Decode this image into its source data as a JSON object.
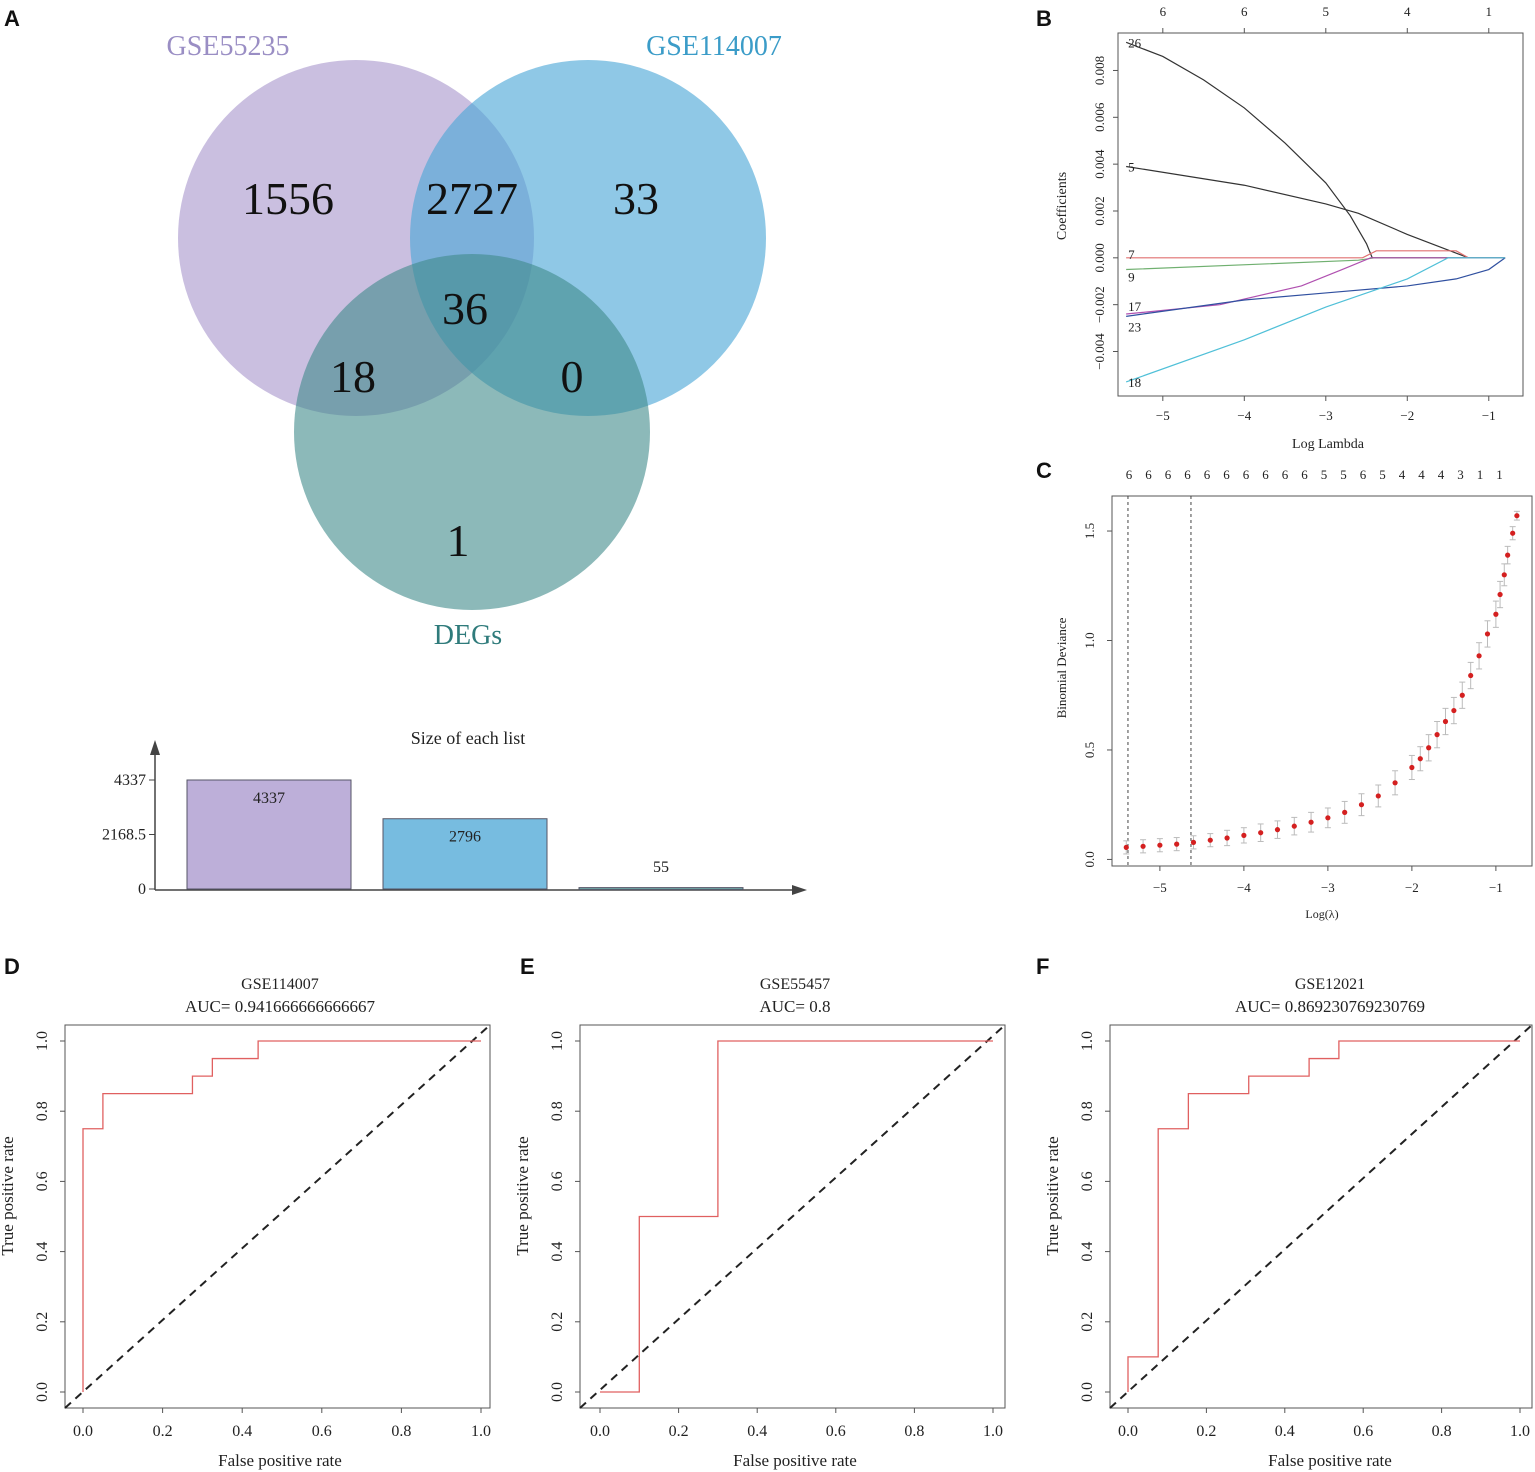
{
  "panels": {
    "a": "A",
    "b": "B",
    "c": "C",
    "d": "D",
    "e": "E",
    "f": "F"
  },
  "colors": {
    "set1": "#a794cc",
    "set2": "#4aa6d6",
    "set3": "#3f8a8a",
    "roc": "#e06060",
    "cv_point": "#d42020"
  },
  "chart_data": [
    {
      "type": "venn",
      "sets": [
        {
          "name": "GSE55235",
          "label_color": "#9a8ec4"
        },
        {
          "name": "GSE114007",
          "label_color": "#3b9cc8"
        },
        {
          "name": "DEGs",
          "label_color": "#2f7b7b"
        }
      ],
      "regions": [
        {
          "sets": [
            "GSE55235"
          ],
          "value": "1556"
        },
        {
          "sets": [
            "GSE55235",
            "GSE114007"
          ],
          "value": "2727"
        },
        {
          "sets": [
            "GSE114007"
          ],
          "value": "33"
        },
        {
          "sets": [
            "GSE55235",
            "GSE114007",
            "DEGs"
          ],
          "value": "36"
        },
        {
          "sets": [
            "GSE55235",
            "DEGs"
          ],
          "value": "18"
        },
        {
          "sets": [
            "GSE114007",
            "DEGs"
          ],
          "value": "0"
        },
        {
          "sets": [
            "DEGs"
          ],
          "value": "1"
        }
      ]
    },
    {
      "type": "bar",
      "title": "Size of each list",
      "values": [
        4337,
        2796,
        55
      ],
      "value_labels": [
        "4337",
        "2796",
        "55"
      ],
      "ylim": [
        0,
        4337
      ],
      "y_ticks": [
        {
          "v": 0,
          "label": "0"
        },
        {
          "v": 2168.5,
          "label": "2168.5"
        },
        {
          "v": 4337,
          "label": "4337"
        }
      ]
    },
    {
      "type": "line",
      "xlabel": "Log Lambda",
      "ylabel": "Coefficients",
      "xlim": [
        -5.55,
        -0.58
      ],
      "ylim": [
        -0.0059,
        0.0096
      ],
      "x_ticks": [
        {
          "v": -5,
          "label": "−5"
        },
        {
          "v": -4,
          "label": "−4"
        },
        {
          "v": -3,
          "label": "−3"
        },
        {
          "v": -2,
          "label": "−2"
        },
        {
          "v": -1,
          "label": "−1"
        }
      ],
      "y_ticks": [
        {
          "v": -0.004,
          "label": "−0.004"
        },
        {
          "v": -0.002,
          "label": "−0.002"
        },
        {
          "v": 0,
          "label": "0.000"
        },
        {
          "v": 0.002,
          "label": "0.002"
        },
        {
          "v": 0.004,
          "label": "0.004"
        },
        {
          "v": 0.006,
          "label": "0.006"
        },
        {
          "v": 0.008,
          "label": "0.008"
        }
      ],
      "top_ticks": [
        {
          "v": -5,
          "label": "6"
        },
        {
          "v": -4,
          "label": "6"
        },
        {
          "v": -3,
          "label": "5"
        },
        {
          "v": -2,
          "label": "4"
        },
        {
          "v": -1,
          "label": "1"
        }
      ],
      "series": [
        {
          "name": "26",
          "color": "#333333",
          "points": [
            [
              -5.45,
              0.0092
            ],
            [
              -5,
              0.0086
            ],
            [
              -4.5,
              0.0076
            ],
            [
              -4,
              0.0064
            ],
            [
              -3.5,
              0.0049
            ],
            [
              -3,
              0.0032
            ],
            [
              -2.7,
              0.0018
            ],
            [
              -2.5,
              0.0006
            ],
            [
              -2.43,
              0
            ],
            [
              -0.8,
              0
            ]
          ]
        },
        {
          "name": "5",
          "color": "#333333",
          "points": [
            [
              -5.45,
              0.0039
            ],
            [
              -4,
              0.0031
            ],
            [
              -3,
              0.0023
            ],
            [
              -2.6,
              0.0019
            ],
            [
              -2,
              0.001
            ],
            [
              -1.25,
              0
            ],
            [
              -0.8,
              0
            ]
          ]
        },
        {
          "name": "7",
          "color": "#e07070",
          "points": [
            [
              -5.45,
              0
            ],
            [
              -2.55,
              0
            ],
            [
              -2.38,
              0.0003
            ],
            [
              -1.4,
              0.0003
            ],
            [
              -1.25,
              0
            ],
            [
              -0.8,
              0
            ]
          ]
        },
        {
          "name": "9",
          "color": "#70b070",
          "points": [
            [
              -5.45,
              -0.0005
            ],
            [
              -2.6,
              -0.0001
            ],
            [
              -2.4,
              0
            ],
            [
              -0.8,
              0
            ]
          ]
        },
        {
          "name": "17",
          "color": "#b050b0",
          "points": [
            [
              -5.45,
              -0.0024
            ],
            [
              -4.3,
              -0.002
            ],
            [
              -3.3,
              -0.0012
            ],
            [
              -2.8,
              -0.0005
            ],
            [
              -2.45,
              0
            ],
            [
              -0.8,
              0
            ]
          ]
        },
        {
          "name": "23",
          "color": "#3050a0",
          "points": [
            [
              -5.45,
              -0.0025
            ],
            [
              -4,
              -0.0018
            ],
            [
              -3,
              -0.0015
            ],
            [
              -2,
              -0.0012
            ],
            [
              -1.4,
              -0.0009
            ],
            [
              -1,
              -0.0005
            ],
            [
              -0.8,
              0
            ]
          ]
        },
        {
          "name": "18",
          "color": "#50c0d8",
          "points": [
            [
              -5.45,
              -0.0053
            ],
            [
              -4,
              -0.0035
            ],
            [
              -3,
              -0.0021
            ],
            [
              -2,
              -0.0009
            ],
            [
              -1.5,
              0
            ],
            [
              -0.8,
              0
            ]
          ]
        }
      ]
    },
    {
      "type": "scatter",
      "xlabel": "Log(λ)",
      "ylabel": "Binomial Deviance",
      "xlim": [
        -5.57,
        -0.57
      ],
      "ylim": [
        -0.03,
        1.66
      ],
      "x_ticks": [
        {
          "v": -5,
          "label": "−5"
        },
        {
          "v": -4,
          "label": "−4"
        },
        {
          "v": -3,
          "label": "−3"
        },
        {
          "v": -2,
          "label": "−2"
        },
        {
          "v": -1,
          "label": "−1"
        }
      ],
      "y_ticks": [
        {
          "v": 0,
          "label": "0.0"
        },
        {
          "v": 0.5,
          "label": "0.5"
        },
        {
          "v": 1,
          "label": "1.0"
        },
        {
          "v": 1.5,
          "label": "1.5"
        }
      ],
      "top_labels": [
        "6",
        "6",
        "6",
        "6",
        "6",
        "6",
        "6",
        "6",
        "6",
        "6",
        "5",
        "5",
        "6",
        "5",
        "4",
        "4",
        "4",
        "3",
        "1",
        "1"
      ],
      "vlines": [
        -5.38,
        -4.63
      ],
      "points": [
        [
          -5.4,
          0.055,
          0.03
        ],
        [
          -5.2,
          0.06,
          0.03
        ],
        [
          -5.0,
          0.065,
          0.03
        ],
        [
          -4.8,
          0.07,
          0.03
        ],
        [
          -4.6,
          0.078,
          0.03
        ],
        [
          -4.4,
          0.088,
          0.03
        ],
        [
          -4.2,
          0.098,
          0.035
        ],
        [
          -4.0,
          0.11,
          0.035
        ],
        [
          -3.8,
          0.122,
          0.04
        ],
        [
          -3.6,
          0.136,
          0.04
        ],
        [
          -3.4,
          0.152,
          0.04
        ],
        [
          -3.2,
          0.17,
          0.045
        ],
        [
          -3.0,
          0.19,
          0.045
        ],
        [
          -2.8,
          0.215,
          0.05
        ],
        [
          -2.6,
          0.25,
          0.05
        ],
        [
          -2.4,
          0.29,
          0.05
        ],
        [
          -2.2,
          0.35,
          0.055
        ],
        [
          -2.0,
          0.42,
          0.055
        ],
        [
          -1.9,
          0.46,
          0.055
        ],
        [
          -1.8,
          0.51,
          0.06
        ],
        [
          -1.7,
          0.57,
          0.06
        ],
        [
          -1.6,
          0.63,
          0.06
        ],
        [
          -1.5,
          0.68,
          0.06
        ],
        [
          -1.4,
          0.75,
          0.06
        ],
        [
          -1.3,
          0.84,
          0.06
        ],
        [
          -1.2,
          0.93,
          0.06
        ],
        [
          -1.1,
          1.03,
          0.06
        ],
        [
          -1.0,
          1.12,
          0.06
        ],
        [
          -0.95,
          1.21,
          0.06
        ],
        [
          -0.9,
          1.3,
          0.05
        ],
        [
          -0.86,
          1.39,
          0.04
        ],
        [
          -0.8,
          1.49,
          0.03
        ],
        [
          -0.75,
          1.57,
          0.02
        ]
      ]
    },
    {
      "type": "line",
      "title": "GSE114007",
      "subtitle": "AUC= 0.941666666666667",
      "xlabel": "False positive rate",
      "ylabel": "True positive rate",
      "xlim": [
        0,
        1
      ],
      "ylim": [
        0,
        1
      ],
      "ticks": [
        "0.0",
        "0.2",
        "0.4",
        "0.6",
        "0.8",
        "1.0"
      ],
      "points": [
        [
          0,
          0
        ],
        [
          0,
          0.75
        ],
        [
          0.05,
          0.75
        ],
        [
          0.05,
          0.85
        ],
        [
          0.275,
          0.85
        ],
        [
          0.275,
          0.9
        ],
        [
          0.325,
          0.9
        ],
        [
          0.325,
          0.95
        ],
        [
          0.44,
          0.95
        ],
        [
          0.44,
          1
        ],
        [
          1,
          1
        ]
      ]
    },
    {
      "type": "line",
      "title": "GSE55457",
      "subtitle": "AUC= 0.8",
      "xlabel": "False positive rate",
      "ylabel": "True positive rate",
      "xlim": [
        0,
        1
      ],
      "ylim": [
        0,
        1
      ],
      "ticks": [
        "0.0",
        "0.2",
        "0.4",
        "0.6",
        "0.8",
        "1.0"
      ],
      "points": [
        [
          0,
          0
        ],
        [
          0.1,
          0
        ],
        [
          0.1,
          0.5
        ],
        [
          0.3,
          0.5
        ],
        [
          0.3,
          1
        ],
        [
          1,
          1
        ]
      ]
    },
    {
      "type": "line",
      "title": "GSE12021",
      "subtitle": "AUC= 0.869230769230769",
      "xlabel": "False positive rate",
      "ylabel": "True positive rate",
      "xlim": [
        0,
        1
      ],
      "ylim": [
        0,
        1
      ],
      "ticks": [
        "0.0",
        "0.2",
        "0.4",
        "0.6",
        "0.8",
        "1.0"
      ],
      "points": [
        [
          0,
          0
        ],
        [
          0,
          0.1
        ],
        [
          0.077,
          0.1
        ],
        [
          0.077,
          0.75
        ],
        [
          0.154,
          0.75
        ],
        [
          0.154,
          0.85
        ],
        [
          0.308,
          0.85
        ],
        [
          0.308,
          0.9
        ],
        [
          0.462,
          0.9
        ],
        [
          0.462,
          0.95
        ],
        [
          0.538,
          0.95
        ],
        [
          0.538,
          1
        ],
        [
          1,
          1
        ]
      ]
    }
  ]
}
